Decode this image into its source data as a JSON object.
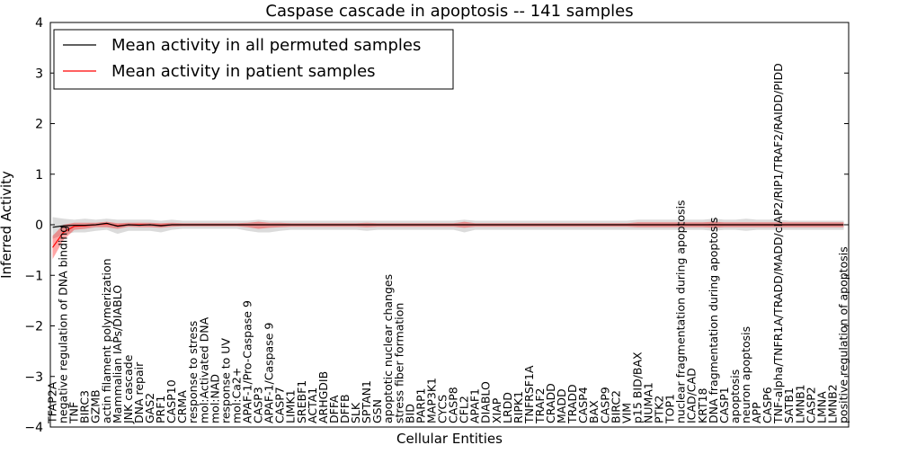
{
  "chart_data": {
    "type": "line",
    "title": "Caspase cascade in apoptosis -- 141 samples",
    "xlabel": "Cellular Entities",
    "ylabel": "Inferred Activity",
    "ylim": [
      -4,
      4
    ],
    "yticks": [
      -4,
      -3,
      -2,
      -1,
      0,
      1,
      2,
      3,
      4
    ],
    "ytick_labels": [
      "−4",
      "−3",
      "−2",
      "−1",
      "0",
      "1",
      "2",
      "3",
      "4"
    ],
    "legend": {
      "placement": "top-left",
      "entries": [
        {
          "label": "Mean activity in all permuted samples",
          "color": "#000000"
        },
        {
          "label": "Mean activity in patient samples",
          "color": "#ff0000"
        }
      ]
    },
    "categories": [
      "TFAP2A",
      "negative regulation of DNA binding",
      "TNF",
      "BIRC3",
      "GZMB",
      "actin filament polymerization",
      "Mammalian IAPs/DIABLO",
      "JNK cascade",
      "DNA repair",
      "GAS2",
      "PRF1",
      "CASP10",
      "CRMA",
      "response to stress",
      "mol:Activated DNA",
      "mol:NAD",
      "response to UV",
      "mol:Ca2+",
      "APAF-1/Pro-Caspase 9",
      "CASP3",
      "APAF-1/Caspase 9",
      "CASP7",
      "LIMK1",
      "SREBF1",
      "ACTA1",
      "ARHGDIB",
      "DFFA",
      "DFFB",
      "SLK",
      "SPTAN1",
      "GSN",
      "apoptotic nuclear changes",
      "stress fiber formation",
      "BID",
      "PARP1",
      "MAP3K1",
      "CYCS",
      "CASP8",
      "CFL2",
      "APAF1",
      "DIABLO",
      "XIAP",
      "LRDD",
      "RIPK1",
      "TNFRSF1A",
      "TRAF2",
      "CRADD",
      "MADD",
      "TRADD",
      "CASP4",
      "BAX",
      "CASP9",
      "BIRC2",
      "VIM",
      "p15 BID/BAX",
      "NUMA1",
      "PTK2",
      "TOP1",
      "nuclear fragmentation during apoptosis",
      "ICAD/CAD",
      "KRT18",
      "DNA fragmentation during apoptosis",
      "CASP1",
      "apoptosis",
      "neuron apoptosis",
      "APP",
      "CASP6",
      "TNF-alpha/TNFR1A/TRADD/MADD/cIAP2/RIP1/TRAF2/RAIDD/PIDD",
      "SATB1",
      "LMNB1",
      "CASP2",
      "LMNA",
      "LMNB2",
      "positive regulation of apoptosis"
    ],
    "series": [
      {
        "name": "Mean activity in all permuted samples",
        "color": "#000000",
        "values": [
          -0.05,
          -0.02,
          -0.01,
          -0.01,
          0.0,
          0.03,
          -0.03,
          0.0,
          -0.01,
          0.0,
          -0.02,
          0.0,
          0.0,
          0.0,
          0.0,
          0.0,
          0.0,
          0.0,
          0.0,
          0.0,
          0.0,
          0.0,
          0.0,
          0.0,
          0.0,
          0.0,
          0.0,
          0.0,
          0.0,
          0.0,
          0.0,
          0.0,
          0.0,
          0.0,
          0.0,
          0.0,
          0.0,
          0.0,
          0.0,
          0.0,
          0.0,
          0.0,
          0.0,
          0.0,
          0.0,
          0.0,
          0.0,
          0.0,
          0.0,
          0.0,
          0.0,
          0.0,
          0.0,
          0.0,
          0.0,
          0.0,
          0.0,
          0.0,
          0.0,
          0.0,
          0.0,
          0.0,
          0.0,
          0.0,
          0.0,
          0.0,
          0.0,
          0.0,
          0.0,
          0.0,
          0.0,
          0.0,
          0.0,
          0.0
        ],
        "band_lower": [
          -0.28,
          -0.2,
          -0.15,
          -0.15,
          -0.12,
          -0.1,
          -0.18,
          -0.12,
          -0.12,
          -0.12,
          -0.15,
          -0.1,
          -0.08,
          -0.08,
          -0.08,
          -0.08,
          -0.08,
          -0.08,
          -0.12,
          -0.15,
          -0.15,
          -0.12,
          -0.1,
          -0.1,
          -0.1,
          -0.1,
          -0.1,
          -0.1,
          -0.1,
          -0.12,
          -0.1,
          -0.1,
          -0.1,
          -0.1,
          -0.1,
          -0.1,
          -0.1,
          -0.1,
          -0.15,
          -0.1,
          -0.1,
          -0.1,
          -0.1,
          -0.1,
          -0.1,
          -0.1,
          -0.1,
          -0.1,
          -0.1,
          -0.1,
          -0.1,
          -0.1,
          -0.1,
          -0.1,
          -0.1,
          -0.1,
          -0.1,
          -0.1,
          -0.1,
          -0.1,
          -0.1,
          -0.12,
          -0.1,
          -0.1,
          -0.12,
          -0.1,
          -0.1,
          -0.1,
          -0.1,
          -0.1,
          -0.1,
          -0.1,
          -0.1,
          -0.1
        ],
        "band_upper": [
          0.15,
          0.12,
          0.1,
          0.12,
          0.1,
          0.12,
          0.1,
          0.1,
          0.1,
          0.1,
          0.08,
          0.1,
          0.08,
          0.08,
          0.08,
          0.08,
          0.08,
          0.08,
          0.08,
          0.1,
          0.08,
          0.08,
          0.08,
          0.08,
          0.08,
          0.08,
          0.08,
          0.08,
          0.08,
          0.08,
          0.08,
          0.08,
          0.08,
          0.08,
          0.08,
          0.08,
          0.08,
          0.08,
          0.1,
          0.08,
          0.08,
          0.08,
          0.08,
          0.08,
          0.08,
          0.08,
          0.08,
          0.08,
          0.08,
          0.08,
          0.08,
          0.08,
          0.08,
          0.08,
          0.1,
          0.1,
          0.1,
          0.1,
          0.1,
          0.1,
          0.1,
          0.12,
          0.1,
          0.1,
          0.12,
          0.1,
          0.1,
          0.1,
          0.08,
          0.08,
          0.08,
          0.08,
          0.08,
          0.08
        ]
      },
      {
        "name": "Mean activity in patient samples",
        "color": "#ff0000",
        "values": [
          -0.45,
          -0.15,
          -0.03,
          -0.02,
          0.0,
          0.02,
          -0.02,
          0.0,
          0.0,
          0.0,
          -0.01,
          0.0,
          0.0,
          0.0,
          0.0,
          0.0,
          0.0,
          0.0,
          0.0,
          0.0,
          0.0,
          0.0,
          0.0,
          0.0,
          0.0,
          0.0,
          0.0,
          0.0,
          0.0,
          0.0,
          0.0,
          0.0,
          0.0,
          0.0,
          0.0,
          0.0,
          0.0,
          0.0,
          0.0,
          0.0,
          0.0,
          0.0,
          0.0,
          0.0,
          0.0,
          0.0,
          0.0,
          0.0,
          0.0,
          0.0,
          0.0,
          0.0,
          0.0,
          0.0,
          0.0,
          0.0,
          0.0,
          0.0,
          0.0,
          0.0,
          0.0,
          0.0,
          0.0,
          0.0,
          0.0,
          0.0,
          0.0,
          0.0,
          0.0,
          0.0,
          0.0,
          0.0,
          0.0,
          0.0
        ],
        "band_lower": [
          -0.68,
          -0.3,
          -0.1,
          -0.08,
          -0.05,
          -0.05,
          -0.08,
          -0.04,
          -0.05,
          -0.05,
          -0.06,
          -0.04,
          -0.03,
          -0.03,
          -0.03,
          -0.03,
          -0.03,
          -0.03,
          -0.05,
          -0.08,
          -0.06,
          -0.05,
          -0.04,
          -0.04,
          -0.04,
          -0.04,
          -0.04,
          -0.04,
          -0.04,
          -0.05,
          -0.04,
          -0.04,
          -0.04,
          -0.04,
          -0.04,
          -0.04,
          -0.04,
          -0.04,
          -0.06,
          -0.04,
          -0.04,
          -0.04,
          -0.04,
          -0.04,
          -0.04,
          -0.04,
          -0.04,
          -0.04,
          -0.04,
          -0.04,
          -0.04,
          -0.04,
          -0.04,
          -0.04,
          -0.05,
          -0.05,
          -0.05,
          -0.05,
          -0.05,
          -0.05,
          -0.05,
          -0.06,
          -0.05,
          -0.05,
          -0.05,
          -0.05,
          -0.05,
          -0.05,
          -0.05,
          -0.05,
          -0.05,
          -0.05,
          -0.05,
          -0.05
        ],
        "band_upper": [
          -0.22,
          0.0,
          0.04,
          0.04,
          0.04,
          0.06,
          0.03,
          0.04,
          0.04,
          0.04,
          0.03,
          0.04,
          0.03,
          0.03,
          0.03,
          0.03,
          0.03,
          0.03,
          0.04,
          0.06,
          0.04,
          0.04,
          0.03,
          0.03,
          0.03,
          0.03,
          0.03,
          0.03,
          0.03,
          0.04,
          0.03,
          0.03,
          0.03,
          0.03,
          0.03,
          0.03,
          0.03,
          0.03,
          0.06,
          0.03,
          0.03,
          0.03,
          0.03,
          0.03,
          0.03,
          0.03,
          0.03,
          0.03,
          0.03,
          0.03,
          0.03,
          0.03,
          0.03,
          0.03,
          0.05,
          0.05,
          0.05,
          0.05,
          0.05,
          0.05,
          0.05,
          0.06,
          0.05,
          0.05,
          0.05,
          0.05,
          0.05,
          0.05,
          0.05,
          0.05,
          0.05,
          0.05,
          0.05,
          0.05
        ]
      }
    ]
  }
}
